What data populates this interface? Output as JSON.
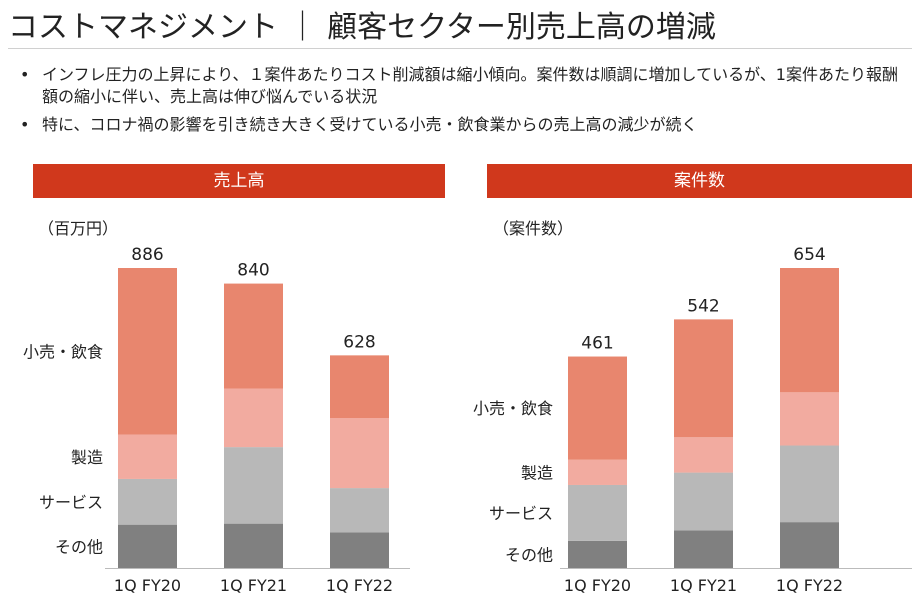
{
  "title": "コストマネジメント ｜ 顧客セクター別売上高の増減",
  "bullets": [
    "インフレ圧力の上昇により、１案件あたりコスト削減額は縮小傾向。案件数は順調に増加しているが、1案件あたり報酬額の縮小に伴い、売上高は伸び悩んでいる状況",
    "特に、コロナ禍の影響を引き続き大きく受けている小売・飲食業からの売上高の減少が続く"
  ],
  "colors": {
    "banner": "#d0381c",
    "retail": "#e8866e",
    "manufacturing": "#f2aba0",
    "services": "#b8b8b8",
    "other": "#808080"
  },
  "chart_data": [
    {
      "type": "bar",
      "stacked": true,
      "banner": "売上高",
      "unit": "（百万円）",
      "categories": [
        "1Q FY20",
        "1Q FY21",
        "1Q FY22"
      ],
      "totals": [
        "886",
        "840",
        "628"
      ],
      "series": [
        {
          "name": "その他",
          "color": "#808080",
          "values": [
            128,
            131,
            105
          ]
        },
        {
          "name": "サービス",
          "color": "#b8b8b8",
          "values": [
            135,
            226,
            131
          ]
        },
        {
          "name": "製造",
          "color": "#f2aba0",
          "values": [
            131,
            173,
            207
          ]
        },
        {
          "name": "小売・飲食",
          "color": "#e8866e",
          "values": [
            492,
            310,
            185
          ]
        }
      ],
      "ylim": [
        0,
        886
      ]
    },
    {
      "type": "bar",
      "stacked": true,
      "banner": "案件数",
      "unit": "（案件数）",
      "categories": [
        "1Q FY20",
        "1Q FY21",
        "1Q FY22"
      ],
      "totals": [
        "461",
        "542",
        "654"
      ],
      "series": [
        {
          "name": "その他",
          "color": "#808080",
          "values": [
            59,
            82,
            100
          ]
        },
        {
          "name": "サービス",
          "color": "#b8b8b8",
          "values": [
            122,
            126,
            167
          ]
        },
        {
          "name": "製造",
          "color": "#f2aba0",
          "values": [
            55,
            77,
            116
          ]
        },
        {
          "name": "小売・飲食",
          "color": "#e8866e",
          "values": [
            225,
            257,
            271
          ]
        }
      ],
      "ylim": [
        0,
        654
      ]
    }
  ]
}
